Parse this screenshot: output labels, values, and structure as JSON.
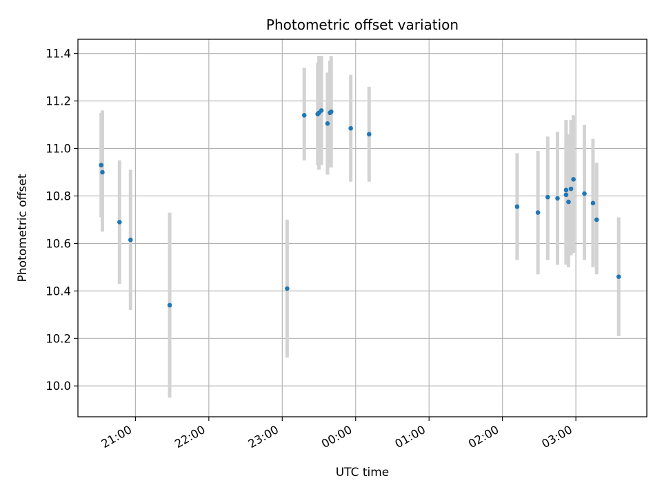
{
  "chart_data": {
    "type": "scatter",
    "title": "Photometric offset variation",
    "xlabel": "UTC time",
    "ylabel": "Photometric offset",
    "x_ticks": [
      "21:00",
      "22:00",
      "23:00",
      "00:00",
      "01:00",
      "02:00",
      "03:00"
    ],
    "y_ticks": [
      "10.0",
      "10.2",
      "10.4",
      "10.6",
      "10.8",
      "11.0",
      "11.2",
      "11.4"
    ],
    "ylim": [
      9.87,
      11.46
    ],
    "xlim": [
      "20:13",
      "03:58"
    ],
    "grid": true,
    "legend": "none",
    "colors": {
      "point": "#1f77b4",
      "errorbar": "#d3d3d3",
      "grid": "#b0b0b0"
    },
    "series": [
      {
        "points": [
          {
            "x": "20:32",
            "y": 10.93,
            "err_low": 10.71,
            "err_high": 11.15
          },
          {
            "x": "20:33",
            "y": 10.9,
            "err_low": 10.65,
            "err_high": 11.16
          },
          {
            "x": "20:47",
            "y": 10.69,
            "err_low": 10.43,
            "err_high": 10.95
          },
          {
            "x": "20:56",
            "y": 10.615,
            "err_low": 10.32,
            "err_high": 10.91
          },
          {
            "x": "21:28",
            "y": 10.34,
            "err_low": 9.95,
            "err_high": 10.73
          },
          {
            "x": "23:04",
            "y": 10.41,
            "err_low": 10.12,
            "err_high": 10.7
          },
          {
            "x": "23:18",
            "y": 11.14,
            "err_low": 10.95,
            "err_high": 11.34
          },
          {
            "x": "23:29",
            "y": 11.145,
            "err_low": 10.93,
            "err_high": 11.36
          },
          {
            "x": "23:30",
            "y": 11.15,
            "err_low": 10.91,
            "err_high": 11.39
          },
          {
            "x": "23:32",
            "y": 11.16,
            "err_low": 10.93,
            "err_high": 11.39
          },
          {
            "x": "23:37",
            "y": 11.105,
            "err_low": 10.89,
            "err_high": 11.32
          },
          {
            "x": "23:39",
            "y": 11.15,
            "err_low": 10.92,
            "err_high": 11.37
          },
          {
            "x": "23:40",
            "y": 11.155,
            "err_low": 10.92,
            "err_high": 11.39
          },
          {
            "x": "23:56",
            "y": 11.085,
            "err_low": 10.86,
            "err_high": 11.31
          },
          {
            "x": "00:11",
            "y": 11.06,
            "err_low": 10.86,
            "err_high": 11.26
          },
          {
            "x": "02:12",
            "y": 10.755,
            "err_low": 10.53,
            "err_high": 10.98
          },
          {
            "x": "02:29",
            "y": 10.73,
            "err_low": 10.47,
            "err_high": 10.99
          },
          {
            "x": "02:37",
            "y": 10.795,
            "err_low": 10.53,
            "err_high": 11.05
          },
          {
            "x": "02:45",
            "y": 10.79,
            "err_low": 10.51,
            "err_high": 11.07
          },
          {
            "x": "02:52",
            "y": 10.825,
            "err_low": 10.52,
            "err_high": 11.12
          },
          {
            "x": "02:52",
            "y": 10.805,
            "err_low": 10.51,
            "err_high": 11.1
          },
          {
            "x": "02:54",
            "y": 10.775,
            "err_low": 10.5,
            "err_high": 11.06
          },
          {
            "x": "02:56",
            "y": 10.83,
            "err_low": 10.55,
            "err_high": 11.12
          },
          {
            "x": "02:58",
            "y": 10.87,
            "err_low": 10.56,
            "err_high": 11.14
          },
          {
            "x": "03:07",
            "y": 10.81,
            "err_low": 10.53,
            "err_high": 11.1
          },
          {
            "x": "03:14",
            "y": 10.77,
            "err_low": 10.5,
            "err_high": 11.04
          },
          {
            "x": "03:17",
            "y": 10.7,
            "err_low": 10.47,
            "err_high": 10.94
          },
          {
            "x": "03:35",
            "y": 10.46,
            "err_low": 10.21,
            "err_high": 10.71
          }
        ]
      }
    ]
  }
}
